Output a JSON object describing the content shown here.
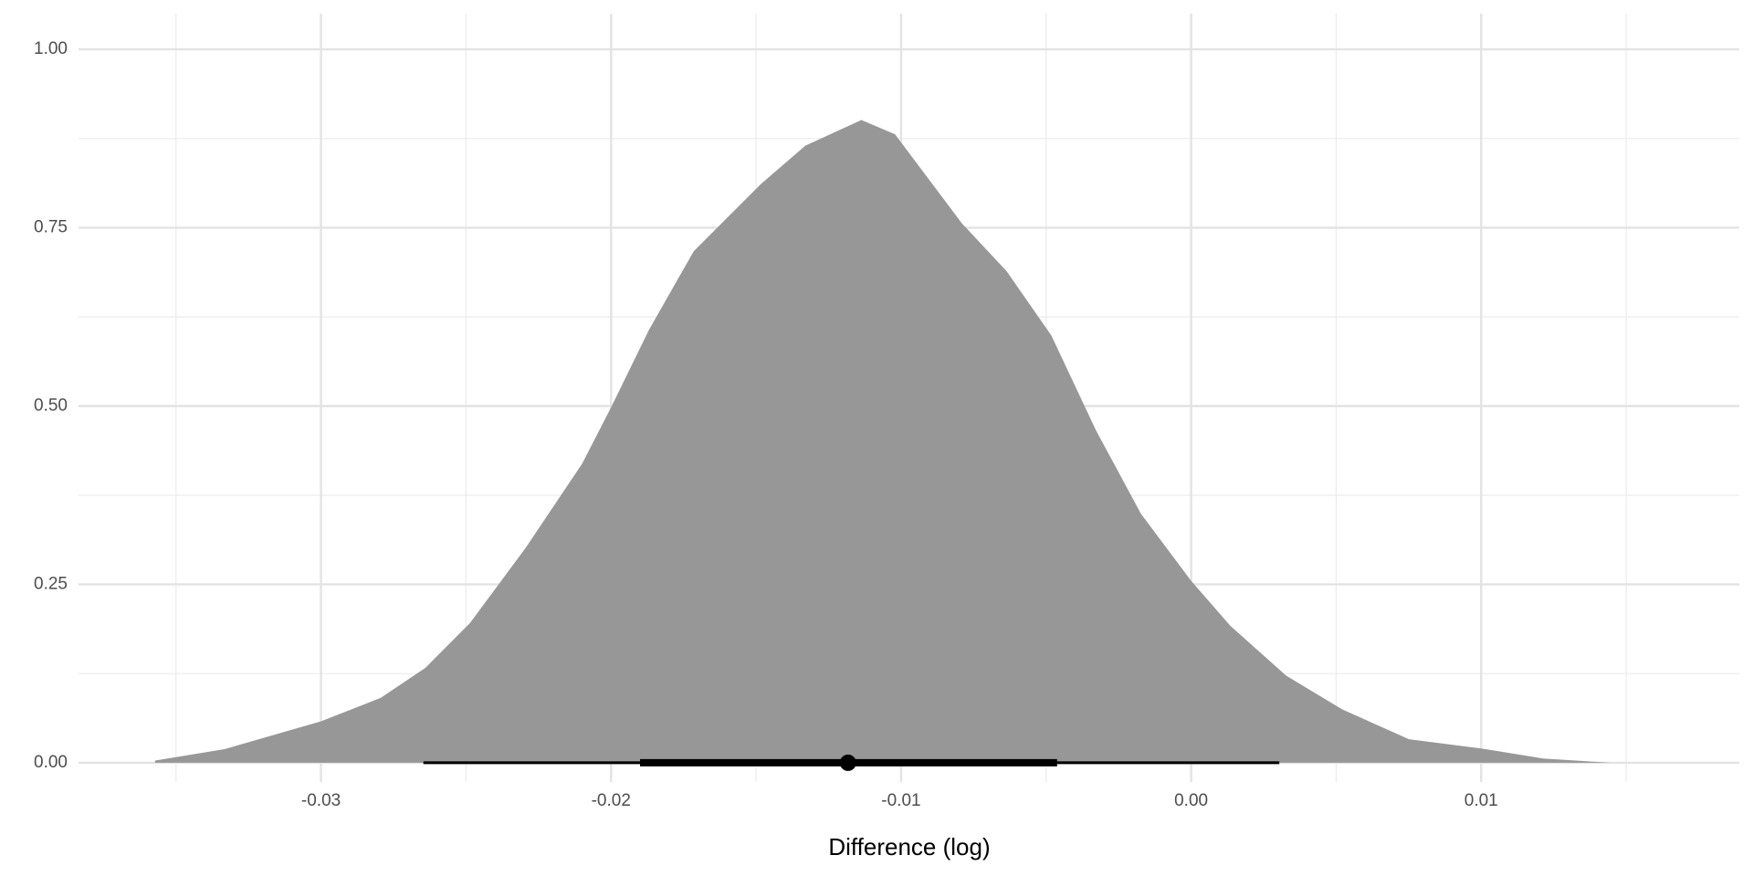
{
  "chart_data": {
    "type": "halfeye",
    "x_label": "Difference (log)",
    "x": [
      -0.03572,
      -0.03333,
      -0.03,
      -0.02794,
      -0.0264,
      -0.02486,
      -0.02293,
      -0.021,
      -0.02,
      -0.01869,
      -0.01715,
      -0.01484,
      -0.0133,
      -0.01137,
      -0.01021,
      -0.0079,
      -0.00636,
      -0.00482,
      -0.00328,
      -0.00173,
      0.0,
      0.00135,
      0.00328,
      0.0052,
      0.00751,
      0.01,
      0.01214,
      0.01445,
      0.0163
    ],
    "values": [
      0.003,
      0.019,
      0.058,
      0.091,
      0.133,
      0.196,
      0.302,
      0.419,
      0.498,
      0.607,
      0.717,
      0.811,
      0.865,
      0.901,
      0.881,
      0.756,
      0.689,
      0.599,
      0.466,
      0.349,
      0.255,
      0.192,
      0.122,
      0.075,
      0.033,
      0.02,
      0.006,
      0.0,
      0.0
    ],
    "color": "#979797",
    "point": -0.01183,
    "interval_66": [
      -0.019,
      -0.00462
    ],
    "interval_95": [
      -0.02647,
      0.00304
    ],
    "interval_color": "#000000",
    "xlim": [
      -0.03836,
      0.0189
    ],
    "ylim": [
      -0.027,
      1.05
    ],
    "xticks": [
      -0.03,
      -0.02,
      -0.01,
      {
        "value": 0,
        "label": "0.00"
      },
      0.01
    ],
    "yticks": [
      {
        "value": 0,
        "label": "0.00"
      },
      {
        "value": 0.25,
        "label": "0.25"
      },
      {
        "value": 0.5,
        "label": "0.50"
      },
      {
        "value": 0.75,
        "label": "0.75"
      },
      {
        "value": 1,
        "label": "1.00"
      }
    ],
    "grid": true
  }
}
